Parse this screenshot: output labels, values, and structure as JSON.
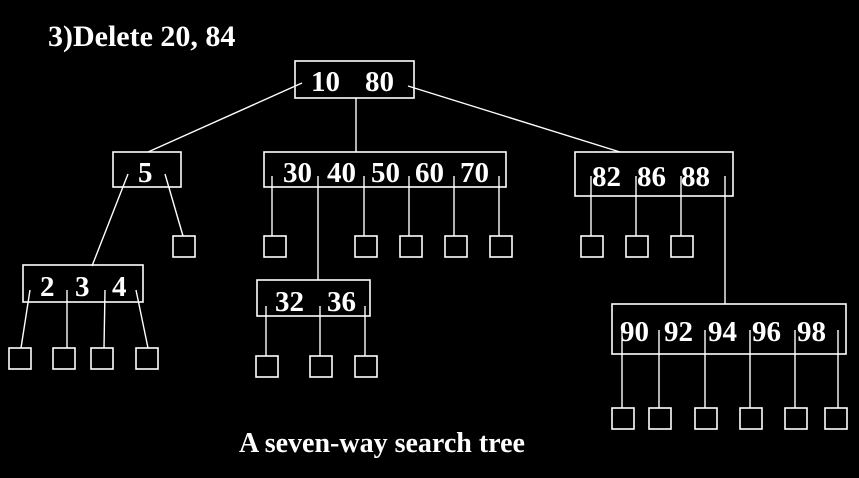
{
  "title": "3)Delete 20, 84",
  "caption": "A seven-way search tree",
  "colors": {
    "background": "#000000",
    "foreground": "#ffffff"
  },
  "tree": {
    "root": {
      "keys": [
        "10",
        "80"
      ]
    },
    "level1": [
      {
        "name": "node-5",
        "keys": [
          "5"
        ]
      },
      {
        "name": "node-30-70",
        "keys": [
          "30",
          "40",
          "50",
          "60",
          "70"
        ]
      },
      {
        "name": "node-82-88",
        "keys": [
          "82",
          "86",
          "88"
        ]
      }
    ],
    "level2": [
      {
        "name": "node-2-4",
        "keys": [
          "2",
          "3",
          "4"
        ]
      },
      {
        "name": "node-32-36",
        "keys": [
          "32",
          "36"
        ]
      },
      {
        "name": "node-90-98",
        "keys": [
          "90",
          "92",
          "94",
          "96",
          "98"
        ]
      }
    ]
  }
}
